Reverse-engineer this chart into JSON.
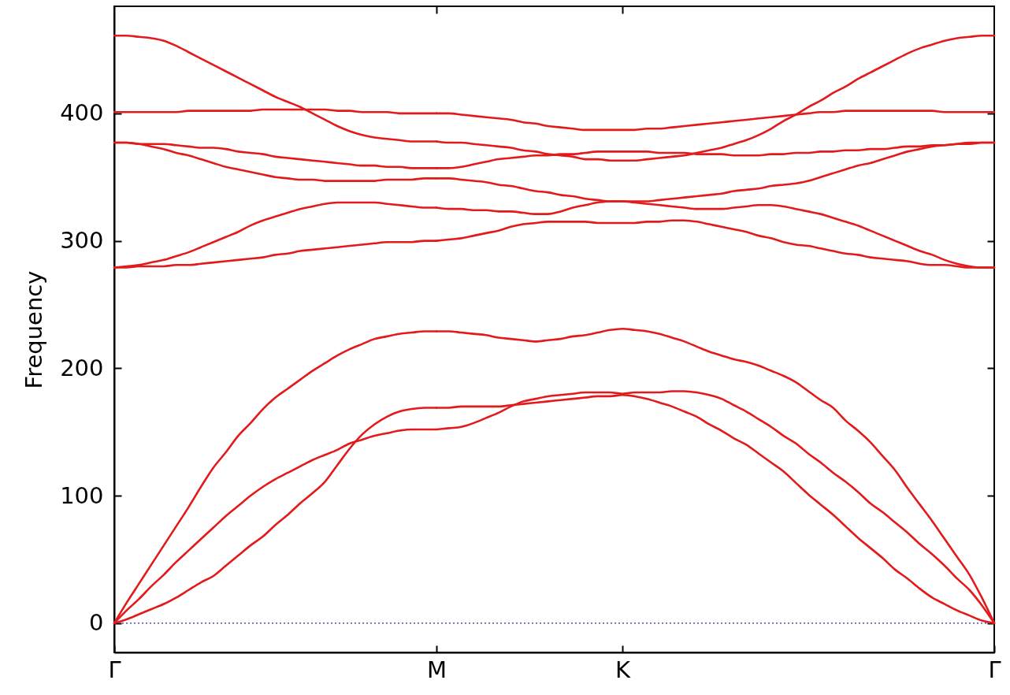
{
  "chart_data": {
    "type": "line",
    "ylabel": "Frequency",
    "categories": [
      "Γ",
      null,
      null,
      null,
      null,
      null,
      null,
      null,
      null,
      null,
      null,
      null,
      null,
      null,
      null,
      null,
      null,
      null,
      null,
      null,
      null,
      null,
      null,
      null,
      null,
      null,
      "M",
      null,
      null,
      null,
      null,
      null,
      null,
      null,
      null,
      null,
      null,
      null,
      null,
      null,
      null,
      "K",
      null,
      null,
      null,
      null,
      null,
      null,
      null,
      null,
      null,
      null,
      null,
      null,
      null,
      null,
      null,
      null,
      null,
      null,
      null,
      null,
      null,
      null,
      null,
      null,
      null,
      null,
      null,
      null,
      null,
      "Γ"
    ],
    "ylim": [
      -23,
      484
    ],
    "yticks": [
      0,
      100,
      200,
      300,
      400
    ],
    "ref_lines": [
      {
        "axis": "y",
        "value": 0,
        "color": "#2b2bb0",
        "line_style": "dotted"
      }
    ],
    "series": [
      {
        "color": "#e31a1c",
        "values": [
          461,
          461,
          460,
          459,
          457,
          453,
          448,
          443,
          438,
          433,
          428,
          423,
          418,
          413,
          409,
          405,
          400,
          395,
          390,
          386,
          383,
          381,
          380,
          379,
          378,
          378,
          378,
          null,
          null,
          null,
          null,
          null,
          null,
          null,
          null,
          null,
          null,
          null,
          null,
          null,
          null,
          null,
          null,
          null,
          null,
          null,
          null,
          null,
          null,
          null,
          null,
          null,
          null,
          null,
          null,
          null,
          null,
          null,
          null,
          null,
          null,
          null,
          null,
          null,
          null,
          null,
          null,
          null,
          null,
          null,
          null,
          null
        ]
      },
      {
        "color": "#e31a1c",
        "values": [
          null,
          null,
          null,
          null,
          null,
          null,
          null,
          null,
          null,
          null,
          null,
          null,
          null,
          null,
          null,
          null,
          null,
          null,
          null,
          null,
          null,
          null,
          null,
          null,
          null,
          null,
          378,
          377,
          377,
          376,
          375,
          374,
          373,
          371,
          370,
          368,
          367,
          366,
          364,
          364,
          363,
          363,
          363,
          364,
          365,
          366,
          367,
          369,
          371,
          373,
          376,
          379,
          383,
          388,
          394,
          399,
          405,
          410,
          416,
          421,
          427,
          432,
          437,
          442,
          447,
          451,
          454,
          457,
          459,
          460,
          461,
          461
        ]
      },
      {
        "color": "#e31a1c",
        "values": [
          401,
          401,
          401,
          401,
          401,
          401,
          402,
          402,
          402,
          402,
          402,
          402,
          403,
          403,
          403,
          403,
          403,
          403,
          402,
          402,
          401,
          401,
          401,
          400,
          400,
          400,
          400,
          null,
          null,
          null,
          null,
          null,
          null,
          null,
          null,
          null,
          null,
          null,
          null,
          null,
          null,
          null,
          null,
          null,
          null,
          null,
          null,
          null,
          null,
          null,
          null,
          null,
          null,
          null,
          null,
          null,
          null,
          null,
          null,
          null,
          null,
          null,
          null,
          null,
          null,
          null,
          null,
          null,
          null,
          null,
          null,
          null
        ]
      },
      {
        "color": "#e31a1c",
        "values": [
          null,
          null,
          null,
          null,
          null,
          null,
          null,
          null,
          null,
          null,
          null,
          null,
          null,
          null,
          null,
          null,
          null,
          null,
          null,
          null,
          null,
          null,
          null,
          null,
          null,
          null,
          400,
          400,
          399,
          398,
          397,
          396,
          395,
          393,
          392,
          390,
          389,
          388,
          387,
          387,
          387,
          387,
          387,
          388,
          388,
          389,
          390,
          391,
          392,
          393,
          394,
          395,
          396,
          397,
          398,
          399,
          400,
          401,
          401,
          402,
          402,
          402,
          402,
          402,
          402,
          402,
          402,
          401,
          401,
          401,
          401,
          401
        ]
      },
      {
        "color": "#e31a1c",
        "values": [
          377,
          377,
          376,
          376,
          376,
          375,
          374,
          373,
          373,
          372,
          370,
          369,
          368,
          366,
          365,
          364,
          363,
          362,
          361,
          360,
          359,
          359,
          358,
          358,
          357,
          357,
          357,
          null,
          null,
          null,
          null,
          null,
          null,
          null,
          null,
          null,
          null,
          null,
          null,
          null,
          null,
          null,
          null,
          null,
          null,
          null,
          null,
          null,
          null,
          null,
          null,
          null,
          null,
          null,
          null,
          null,
          null,
          null,
          null,
          null,
          null,
          null,
          null,
          null,
          null,
          null,
          null,
          null,
          null,
          null,
          null,
          null
        ]
      },
      {
        "color": "#e31a1c",
        "values": [
          null,
          null,
          null,
          null,
          null,
          null,
          null,
          null,
          null,
          null,
          null,
          null,
          null,
          null,
          null,
          null,
          null,
          null,
          null,
          null,
          null,
          null,
          null,
          null,
          null,
          null,
          357,
          357,
          358,
          360,
          362,
          364,
          365,
          366,
          367,
          367,
          368,
          368,
          369,
          370,
          370,
          370,
          370,
          370,
          369,
          369,
          369,
          368,
          368,
          368,
          367,
          367,
          367,
          368,
          368,
          369,
          369,
          370,
          370,
          371,
          371,
          372,
          372,
          373,
          374,
          374,
          375,
          375,
          376,
          376,
          377,
          377
        ]
      },
      {
        "color": "#e31a1c",
        "values": [
          377,
          377,
          376,
          374,
          372,
          369,
          367,
          364,
          361,
          358,
          356,
          354,
          352,
          350,
          349,
          348,
          348,
          347,
          347,
          347,
          347,
          347,
          348,
          348,
          348,
          349,
          349,
          null,
          null,
          null,
          null,
          null,
          null,
          null,
          null,
          null,
          null,
          null,
          null,
          null,
          null,
          null,
          null,
          null,
          null,
          null,
          null,
          null,
          null,
          null,
          null,
          null,
          null,
          null,
          null,
          null,
          null,
          null,
          null,
          null,
          null,
          null,
          null,
          null,
          null,
          null,
          null,
          null,
          null,
          null,
          null,
          null
        ]
      },
      {
        "color": "#e31a1c",
        "values": [
          null,
          null,
          null,
          null,
          null,
          null,
          null,
          null,
          null,
          null,
          null,
          null,
          null,
          null,
          null,
          null,
          null,
          null,
          null,
          null,
          null,
          null,
          null,
          null,
          null,
          null,
          349,
          349,
          348,
          347,
          346,
          344,
          343,
          341,
          339,
          338,
          336,
          335,
          333,
          332,
          331,
          331,
          331,
          331,
          332,
          333,
          334,
          335,
          336,
          337,
          339,
          340,
          341,
          343,
          344,
          345,
          347,
          350,
          353,
          356,
          359,
          361,
          364,
          367,
          370,
          372,
          374,
          375,
          376,
          377,
          377,
          377
        ]
      },
      {
        "color": "#e31a1c",
        "values": [
          279,
          280,
          281,
          283,
          285,
          288,
          291,
          295,
          299,
          303,
          307,
          312,
          316,
          319,
          322,
          325,
          327,
          329,
          330,
          330,
          330,
          330,
          329,
          328,
          327,
          326,
          326,
          null,
          null,
          null,
          null,
          null,
          null,
          null,
          null,
          null,
          null,
          null,
          null,
          null,
          null,
          null,
          null,
          null,
          null,
          null,
          null,
          null,
          null,
          null,
          null,
          null,
          null,
          null,
          null,
          null,
          null,
          null,
          null,
          null,
          null,
          null,
          null,
          null,
          null,
          null,
          null,
          null,
          null,
          null,
          null,
          null
        ]
      },
      {
        "color": "#e31a1c",
        "values": [
          null,
          null,
          null,
          null,
          null,
          null,
          null,
          null,
          null,
          null,
          null,
          null,
          null,
          null,
          null,
          null,
          null,
          null,
          null,
          null,
          null,
          null,
          null,
          null,
          null,
          null,
          326,
          325,
          325,
          324,
          324,
          323,
          323,
          322,
          321,
          321,
          323,
          326,
          328,
          330,
          331,
          331,
          330,
          329,
          328,
          327,
          326,
          325,
          325,
          325,
          326,
          327,
          328,
          328,
          327,
          325,
          323,
          321,
          318,
          315,
          312,
          308,
          304,
          300,
          296,
          292,
          289,
          285,
          282,
          280,
          279,
          279
        ]
      },
      {
        "color": "#e31a1c",
        "values": [
          279,
          279,
          280,
          280,
          280,
          281,
          281,
          282,
          283,
          284,
          285,
          286,
          287,
          289,
          290,
          292,
          293,
          294,
          295,
          296,
          297,
          298,
          299,
          299,
          299,
          300,
          300,
          null,
          null,
          null,
          null,
          null,
          null,
          null,
          null,
          null,
          null,
          null,
          null,
          null,
          null,
          null,
          null,
          null,
          null,
          null,
          null,
          null,
          null,
          null,
          null,
          null,
          null,
          null,
          null,
          null,
          null,
          null,
          null,
          null,
          null,
          null,
          null,
          null,
          null,
          null,
          null,
          null,
          null,
          null,
          null,
          null
        ]
      },
      {
        "color": "#e31a1c",
        "values": [
          null,
          null,
          null,
          null,
          null,
          null,
          null,
          null,
          null,
          null,
          null,
          null,
          null,
          null,
          null,
          null,
          null,
          null,
          null,
          null,
          null,
          null,
          null,
          null,
          null,
          null,
          300,
          301,
          302,
          304,
          306,
          308,
          311,
          313,
          314,
          315,
          315,
          315,
          315,
          314,
          314,
          314,
          314,
          315,
          315,
          316,
          316,
          315,
          313,
          311,
          309,
          307,
          304,
          302,
          299,
          297,
          296,
          294,
          292,
          290,
          289,
          287,
          286,
          285,
          284,
          282,
          281,
          281,
          280,
          279,
          279,
          279
        ]
      },
      {
        "color": "#e31a1c",
        "values": [
          0,
          16,
          31,
          46,
          61,
          76,
          91,
          107,
          122,
          134,
          147,
          157,
          168,
          177,
          184,
          191,
          198,
          204,
          210,
          215,
          219,
          223,
          225,
          227,
          228,
          229,
          229,
          null,
          null,
          null,
          null,
          null,
          null,
          null,
          null,
          null,
          null,
          null,
          null,
          null,
          null,
          null,
          null,
          null,
          null,
          null,
          null,
          null,
          null,
          null,
          null,
          null,
          null,
          null,
          null,
          null,
          null,
          null,
          null,
          null,
          null,
          null,
          null,
          null,
          null,
          null,
          null,
          null,
          null,
          null,
          null,
          null
        ]
      },
      {
        "color": "#e31a1c",
        "values": [
          null,
          null,
          null,
          null,
          null,
          null,
          null,
          null,
          null,
          null,
          null,
          null,
          null,
          null,
          null,
          null,
          null,
          null,
          null,
          null,
          null,
          null,
          null,
          null,
          null,
          null,
          229,
          229,
          228,
          227,
          226,
          224,
          223,
          222,
          221,
          222,
          223,
          225,
          226,
          228,
          230,
          231,
          230,
          229,
          227,
          224,
          221,
          217,
          213,
          210,
          207,
          205,
          202,
          198,
          194,
          189,
          182,
          175,
          169,
          159,
          151,
          142,
          131,
          120,
          106,
          93,
          80,
          66,
          52,
          38,
          20,
          0
        ]
      },
      {
        "color": "#e31a1c",
        "values": [
          0,
          10,
          19,
          29,
          38,
          48,
          57,
          66,
          75,
          84,
          92,
          100,
          107,
          113,
          118,
          123,
          128,
          132,
          136,
          141,
          144,
          147,
          149,
          151,
          152,
          152,
          152,
          null,
          null,
          null,
          null,
          null,
          null,
          null,
          null,
          null,
          null,
          null,
          null,
          null,
          null,
          null,
          null,
          null,
          null,
          null,
          null,
          null,
          null,
          null,
          null,
          null,
          null,
          null,
          null,
          null,
          null,
          null,
          null,
          null,
          null,
          null,
          null,
          null,
          null,
          null,
          null,
          null,
          null,
          null,
          null,
          null
        ]
      },
      {
        "color": "#e31a1c",
        "values": [
          null,
          null,
          null,
          null,
          null,
          null,
          null,
          null,
          null,
          null,
          null,
          null,
          null,
          null,
          null,
          null,
          null,
          null,
          null,
          null,
          null,
          null,
          null,
          null,
          null,
          null,
          152,
          153,
          154,
          157,
          161,
          165,
          170,
          174,
          176,
          178,
          179,
          180,
          181,
          181,
          181,
          180,
          181,
          181,
          181,
          182,
          182,
          181,
          179,
          176,
          171,
          166,
          160,
          154,
          147,
          141,
          133,
          126,
          118,
          111,
          103,
          94,
          87,
          79,
          71,
          62,
          54,
          45,
          35,
          26,
          14,
          0
        ]
      },
      {
        "color": "#e31a1c",
        "values": [
          0,
          3,
          7,
          11,
          15,
          20,
          26,
          32,
          37,
          45,
          53,
          61,
          68,
          77,
          85,
          94,
          102,
          111,
          124,
          137,
          148,
          156,
          162,
          166,
          168,
          169,
          169,
          null,
          null,
          null,
          null,
          null,
          null,
          null,
          null,
          null,
          null,
          null,
          null,
          null,
          null,
          null,
          null,
          null,
          null,
          null,
          null,
          null,
          null,
          null,
          null,
          null,
          null,
          null,
          null,
          null,
          null,
          null,
          null,
          null,
          null,
          null,
          null,
          null,
          null,
          null,
          null,
          null,
          null,
          null,
          null,
          null
        ]
      },
      {
        "color": "#e31a1c",
        "values": [
          null,
          null,
          null,
          null,
          null,
          null,
          null,
          null,
          null,
          null,
          null,
          null,
          null,
          null,
          null,
          null,
          null,
          null,
          null,
          null,
          null,
          null,
          null,
          null,
          null,
          null,
          169,
          169,
          170,
          170,
          170,
          170,
          171,
          172,
          173,
          174,
          175,
          176,
          177,
          178,
          178,
          179,
          178,
          176,
          173,
          170,
          166,
          162,
          156,
          151,
          145,
          140,
          133,
          126,
          119,
          110,
          101,
          93,
          85,
          76,
          67,
          59,
          51,
          42,
          35,
          27,
          20,
          15,
          10,
          6,
          2,
          0
        ]
      }
    ]
  }
}
